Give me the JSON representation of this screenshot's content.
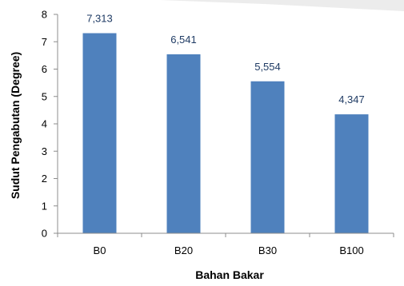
{
  "chart_data": {
    "type": "bar",
    "categories": [
      "B0",
      "B20",
      "B30",
      "B100"
    ],
    "values": [
      7.313,
      6.541,
      5.554,
      4.347
    ],
    "data_labels": [
      "7,313",
      "6,541",
      "5,554",
      "4,347"
    ],
    "title": "",
    "xlabel": "Bahan Bakar",
    "ylabel": "Sudut Pengabutan (Degree)",
    "ylim": [
      0,
      8
    ],
    "yticks": [
      0,
      1,
      2,
      3,
      4,
      5,
      6,
      7,
      8
    ],
    "ytick_labels": [
      "0",
      "1",
      "2",
      "3",
      "4",
      "5",
      "6",
      "7",
      "8"
    ],
    "grid": false,
    "legend": "none",
    "bar_color": "#4f81bd",
    "data_label_color": "#1f3b64"
  }
}
